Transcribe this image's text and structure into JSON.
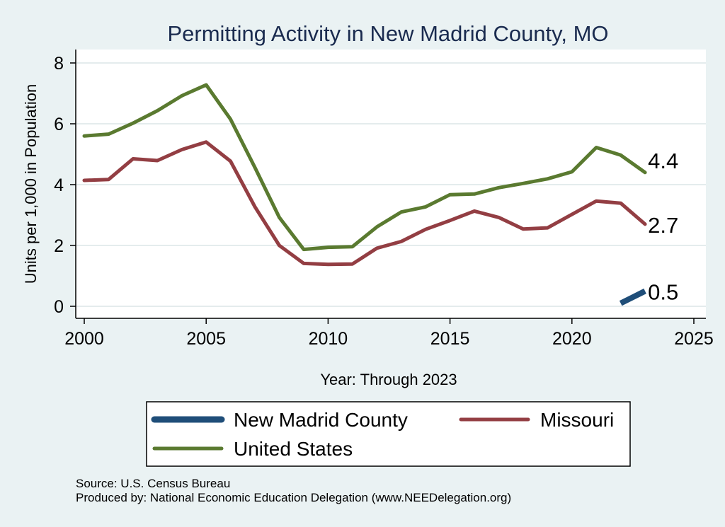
{
  "chart_data": {
    "type": "line",
    "title": "Permitting Activity in New Madrid County, MO",
    "xlabel": "Year: Through 2023",
    "ylabel": "Units per 1,000 in Population",
    "xlim": [
      2000,
      2025
    ],
    "ylim": [
      0,
      8
    ],
    "x_ticks": [
      2000,
      2005,
      2010,
      2015,
      2020,
      2025
    ],
    "y_ticks": [
      0,
      2,
      4,
      6,
      8
    ],
    "grid": true,
    "legend_position": "bottom",
    "series": [
      {
        "name": "New Madrid County",
        "color": "#1f4e79",
        "x": [
          2022,
          2023
        ],
        "values": [
          0.1,
          0.5
        ],
        "end_label": "0.5"
      },
      {
        "name": "Missouri",
        "color": "#933e43",
        "x": [
          2000,
          2001,
          2002,
          2003,
          2004,
          2005,
          2006,
          2007,
          2008,
          2009,
          2010,
          2011,
          2012,
          2013,
          2014,
          2015,
          2016,
          2017,
          2018,
          2019,
          2020,
          2021,
          2022,
          2023
        ],
        "values": [
          4.14,
          4.17,
          4.85,
          4.79,
          5.15,
          5.4,
          4.77,
          3.27,
          2.0,
          1.41,
          1.38,
          1.39,
          1.91,
          2.13,
          2.53,
          2.82,
          3.13,
          2.92,
          2.54,
          2.58,
          3.02,
          3.46,
          3.39,
          2.7
        ],
        "end_label": "2.7"
      },
      {
        "name": "United States",
        "color": "#5a7a30",
        "x": [
          2000,
          2001,
          2002,
          2003,
          2004,
          2005,
          2006,
          2007,
          2008,
          2009,
          2010,
          2011,
          2012,
          2013,
          2014,
          2015,
          2016,
          2017,
          2018,
          2019,
          2020,
          2021,
          2022,
          2023
        ],
        "values": [
          5.6,
          5.66,
          6.02,
          6.43,
          6.92,
          7.28,
          6.15,
          4.56,
          2.92,
          1.87,
          1.94,
          1.96,
          2.61,
          3.1,
          3.27,
          3.67,
          3.69,
          3.9,
          4.04,
          4.19,
          4.42,
          5.22,
          4.97,
          4.4
        ],
        "end_label": "4.4"
      }
    ],
    "notes": [
      "Source: U.S. Census Bureau",
      "Produced by: National Economic Education Delegation (www.NEEDelegation.org)"
    ]
  }
}
